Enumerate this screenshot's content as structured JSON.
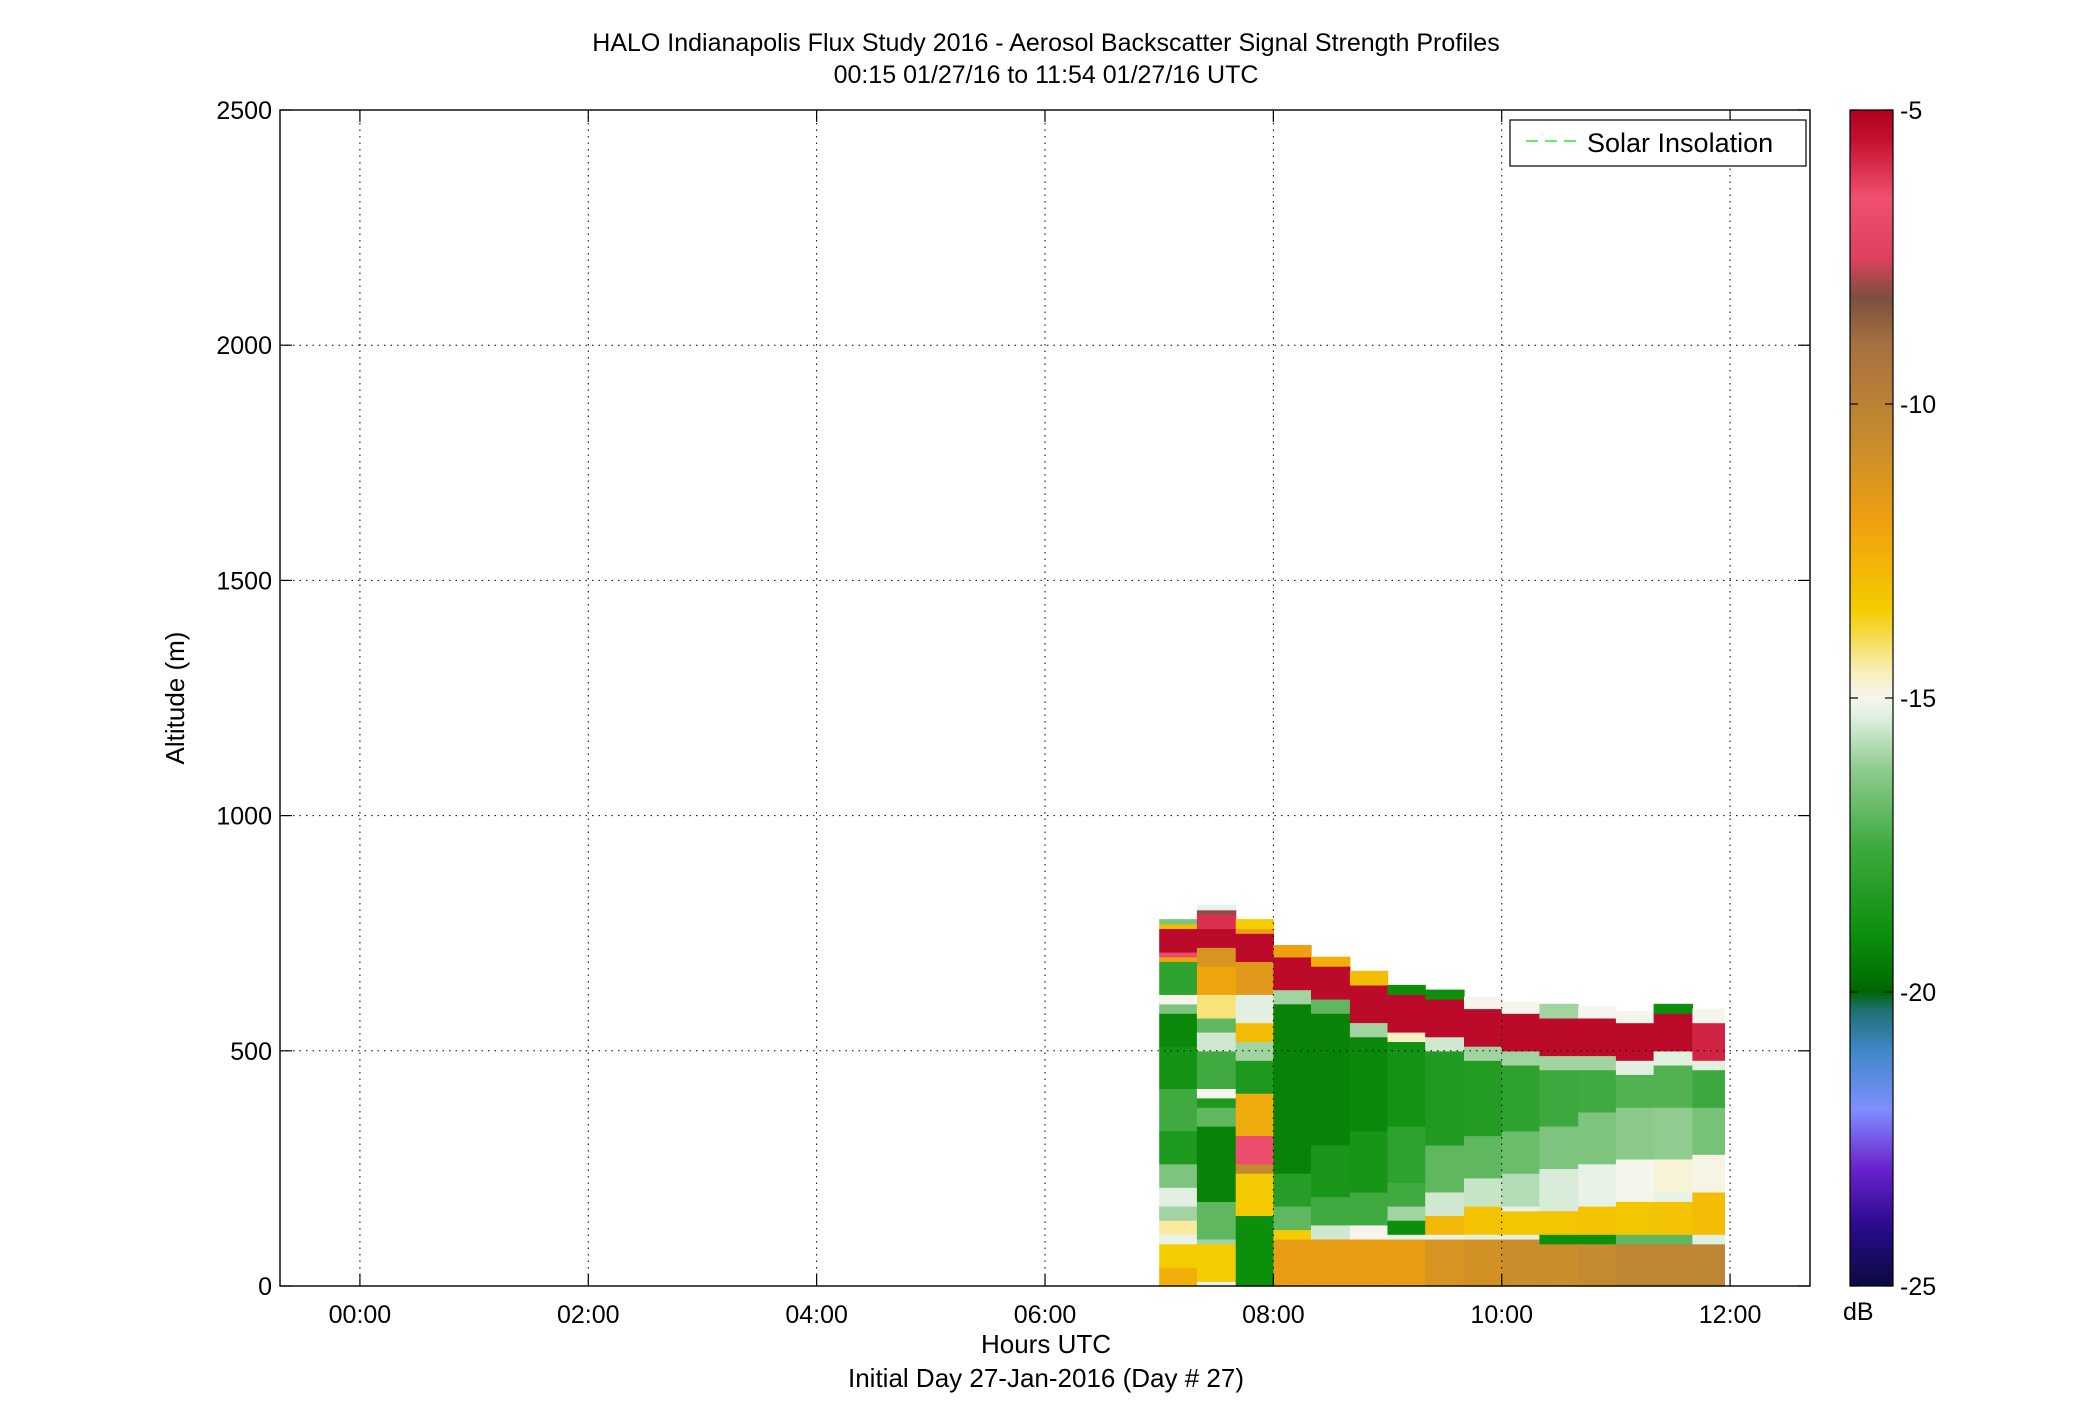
{
  "chart_data": {
    "type": "heatmap",
    "title": "HALO Indianapolis Flux Study 2016 - Aerosol Backscatter Signal Strength Profiles",
    "subtitle": "00:15 01/27/16 to 11:54 01/27/16  UTC",
    "xlabel": "Hours UTC",
    "xlabel2": "Initial Day 27-Jan-2016 (Day # 27)",
    "ylabel": "Altitude (m)",
    "xlim": [
      -0.7,
      12.7
    ],
    "ylim": [
      0,
      2500
    ],
    "x_ticks": [
      0,
      2,
      4,
      6,
      8,
      10,
      12
    ],
    "x_tick_labels": [
      "00:00",
      "02:00",
      "04:00",
      "06:00",
      "08:00",
      "10:00",
      "12:00"
    ],
    "y_ticks": [
      0,
      500,
      1000,
      1500,
      2000,
      2500
    ],
    "y_tick_labels": [
      "0",
      "500",
      "1000",
      "1500",
      "2000",
      "2500"
    ],
    "grid": true,
    "legend": {
      "entries": [
        "Solar Insolation"
      ],
      "placement": "top-right",
      "line_color": "#66ee66",
      "line_style": "dashed"
    },
    "colorbar": {
      "label": "dB",
      "range": [
        -25,
        -5
      ],
      "ticks": [
        -5,
        -10,
        -15,
        -20,
        -25
      ],
      "tick_labels": [
        "-5",
        "-10",
        "-15",
        "-20",
        "-25"
      ],
      "colormap": [
        {
          "v": -25,
          "c": "#0a0a40"
        },
        {
          "v": -24,
          "c": "#2a0a8a"
        },
        {
          "v": -23,
          "c": "#6a22cc"
        },
        {
          "v": -22,
          "c": "#7f8fff"
        },
        {
          "v": -21,
          "c": "#3f88c8"
        },
        {
          "v": -20.3,
          "c": "#1e7070"
        },
        {
          "v": -20,
          "c": "#006600"
        },
        {
          "v": -19,
          "c": "#0c900c"
        },
        {
          "v": -17.5,
          "c": "#40aa40"
        },
        {
          "v": -16.2,
          "c": "#90cc90"
        },
        {
          "v": -15.3,
          "c": "#e2f0e2"
        },
        {
          "v": -15,
          "c": "#f5f5ee"
        },
        {
          "v": -14.6,
          "c": "#f8f0c0"
        },
        {
          "v": -13.5,
          "c": "#f5cc00"
        },
        {
          "v": -12,
          "c": "#eea010"
        },
        {
          "v": -10.5,
          "c": "#c48a30"
        },
        {
          "v": -9,
          "c": "#a67040"
        },
        {
          "v": -8.2,
          "c": "#7a5040"
        },
        {
          "v": -7.5,
          "c": "#e04060"
        },
        {
          "v": -6.5,
          "c": "#f05070"
        },
        {
          "v": -5.5,
          "c": "#c41030"
        },
        {
          "v": -5,
          "c": "#b00020"
        }
      ]
    },
    "profiles": [
      {
        "t0": 7.0,
        "t1": 7.33,
        "top": 780,
        "layers": [
          [
            0,
            40,
            -12.5
          ],
          [
            40,
            90,
            -13.5
          ],
          [
            90,
            110,
            -15.2
          ],
          [
            110,
            140,
            -14.4
          ],
          [
            140,
            170,
            -16.0
          ],
          [
            170,
            210,
            -15.3
          ],
          [
            210,
            260,
            -16.5
          ],
          [
            260,
            330,
            -18.5
          ],
          [
            330,
            420,
            -17.5
          ],
          [
            420,
            510,
            -18.8
          ],
          [
            510,
            580,
            -19.2
          ],
          [
            580,
            600,
            -16.5
          ],
          [
            600,
            620,
            -15.0
          ],
          [
            620,
            690,
            -18.0
          ],
          [
            690,
            700,
            -12.0
          ],
          [
            700,
            710,
            -6.8
          ],
          [
            710,
            760,
            -5.3
          ],
          [
            760,
            770,
            -13.0
          ],
          [
            770,
            780,
            -16.5
          ]
        ]
      },
      {
        "t0": 7.33,
        "t1": 7.67,
        "top": 810,
        "layers": [
          [
            0,
            10,
            -15.2
          ],
          [
            10,
            90,
            -13.5
          ],
          [
            90,
            100,
            -16.0
          ],
          [
            100,
            180,
            -17.0
          ],
          [
            180,
            340,
            -19.3
          ],
          [
            340,
            380,
            -17.0
          ],
          [
            380,
            400,
            -18.5
          ],
          [
            400,
            420,
            -15.0
          ],
          [
            420,
            500,
            -17.5
          ],
          [
            500,
            540,
            -15.5
          ],
          [
            540,
            570,
            -17.0
          ],
          [
            570,
            620,
            -14.2
          ],
          [
            620,
            680,
            -12.2
          ],
          [
            680,
            720,
            -11.2
          ],
          [
            720,
            760,
            -5.3
          ],
          [
            760,
            790,
            -6.0
          ],
          [
            790,
            800,
            -8.0
          ],
          [
            800,
            810,
            -15.2
          ]
        ]
      },
      {
        "t0": 7.67,
        "t1": 8.0,
        "top": 780,
        "layers": [
          [
            0,
            150,
            -19.0
          ],
          [
            150,
            240,
            -13.4
          ],
          [
            240,
            260,
            -10.5
          ],
          [
            260,
            320,
            -6.7
          ],
          [
            320,
            410,
            -12.4
          ],
          [
            410,
            480,
            -18.5
          ],
          [
            480,
            520,
            -16.0
          ],
          [
            520,
            560,
            -13.0
          ],
          [
            560,
            620,
            -15.3
          ],
          [
            620,
            690,
            -11.5
          ],
          [
            690,
            750,
            -5.3
          ],
          [
            750,
            760,
            -12.0
          ],
          [
            760,
            780,
            -13.5
          ]
        ]
      },
      {
        "t0": 8.0,
        "t1": 8.33,
        "top": 725,
        "layers": [
          [
            0,
            100,
            -11.8
          ],
          [
            100,
            120,
            -13.5
          ],
          [
            120,
            170,
            -17.0
          ],
          [
            170,
            240,
            -18.2
          ],
          [
            240,
            600,
            -19.3
          ],
          [
            600,
            630,
            -16.0
          ],
          [
            630,
            700,
            -5.3
          ],
          [
            700,
            725,
            -12.0
          ]
        ]
      },
      {
        "t0": 8.33,
        "t1": 8.67,
        "top": 700,
        "layers": [
          [
            0,
            100,
            -11.8
          ],
          [
            100,
            130,
            -15.5
          ],
          [
            130,
            190,
            -17.5
          ],
          [
            190,
            300,
            -18.6
          ],
          [
            300,
            580,
            -19.3
          ],
          [
            580,
            610,
            -17.0
          ],
          [
            610,
            680,
            -5.3
          ],
          [
            680,
            700,
            -12.5
          ]
        ]
      },
      {
        "t0": 8.67,
        "t1": 9.0,
        "top": 670,
        "layers": [
          [
            0,
            100,
            -11.8
          ],
          [
            100,
            130,
            -15.0
          ],
          [
            130,
            200,
            -17.5
          ],
          [
            200,
            330,
            -18.7
          ],
          [
            330,
            530,
            -19.2
          ],
          [
            530,
            560,
            -16.0
          ],
          [
            560,
            640,
            -5.3
          ],
          [
            640,
            670,
            -13.0
          ]
        ]
      },
      {
        "t0": 9.0,
        "t1": 9.33,
        "top": 640,
        "layers": [
          [
            0,
            100,
            -11.8
          ],
          [
            100,
            110,
            -15.2
          ],
          [
            110,
            140,
            -19.0
          ],
          [
            140,
            170,
            -16.0
          ],
          [
            170,
            220,
            -17.5
          ],
          [
            220,
            340,
            -18.0
          ],
          [
            340,
            520,
            -18.8
          ],
          [
            520,
            540,
            -14.6
          ],
          [
            540,
            620,
            -5.3
          ],
          [
            620,
            640,
            -19.0
          ]
        ]
      },
      {
        "t0": 9.33,
        "t1": 9.67,
        "top": 630,
        "layers": [
          [
            0,
            100,
            -11.2
          ],
          [
            100,
            110,
            -15.2
          ],
          [
            110,
            150,
            -12.8
          ],
          [
            150,
            200,
            -15.5
          ],
          [
            200,
            300,
            -17.0
          ],
          [
            300,
            500,
            -18.4
          ],
          [
            500,
            530,
            -15.5
          ],
          [
            530,
            610,
            -5.3
          ],
          [
            610,
            630,
            -19.0
          ]
        ]
      },
      {
        "t0": 9.67,
        "t1": 10.0,
        "top": 615,
        "layers": [
          [
            0,
            100,
            -11.0
          ],
          [
            100,
            110,
            -15.3
          ],
          [
            110,
            170,
            -13.2
          ],
          [
            170,
            230,
            -15.6
          ],
          [
            230,
            320,
            -17.0
          ],
          [
            320,
            480,
            -18.3
          ],
          [
            480,
            510,
            -16.0
          ],
          [
            510,
            590,
            -5.3
          ],
          [
            590,
            615,
            -15.0
          ]
        ]
      },
      {
        "t0": 10.0,
        "t1": 10.33,
        "top": 605,
        "layers": [
          [
            0,
            100,
            -10.7
          ],
          [
            100,
            110,
            -15.3
          ],
          [
            110,
            160,
            -13.3
          ],
          [
            160,
            170,
            -15.2
          ],
          [
            170,
            240,
            -15.8
          ],
          [
            240,
            330,
            -16.8
          ],
          [
            330,
            470,
            -18.0
          ],
          [
            470,
            500,
            -16.0
          ],
          [
            500,
            580,
            -5.3
          ],
          [
            580,
            605,
            -15.0
          ]
        ]
      },
      {
        "t0": 10.33,
        "t1": 10.67,
        "top": 600,
        "layers": [
          [
            0,
            90,
            -10.7
          ],
          [
            90,
            110,
            -19.0
          ],
          [
            110,
            160,
            -13.3
          ],
          [
            160,
            250,
            -15.4
          ],
          [
            250,
            340,
            -16.5
          ],
          [
            340,
            460,
            -17.6
          ],
          [
            460,
            490,
            -16.0
          ],
          [
            490,
            570,
            -5.3
          ],
          [
            570,
            600,
            -16.0
          ]
        ]
      },
      {
        "t0": 10.67,
        "t1": 11.0,
        "top": 595,
        "layers": [
          [
            0,
            90,
            -10.5
          ],
          [
            90,
            110,
            -19.0
          ],
          [
            110,
            170,
            -13.2
          ],
          [
            170,
            260,
            -15.2
          ],
          [
            260,
            370,
            -16.5
          ],
          [
            370,
            460,
            -17.5
          ],
          [
            460,
            490,
            -16.0
          ],
          [
            490,
            570,
            -5.3
          ],
          [
            570,
            595,
            -15.0
          ]
        ]
      },
      {
        "t0": 11.0,
        "t1": 11.33,
        "top": 585,
        "layers": [
          [
            0,
            90,
            -10.2
          ],
          [
            90,
            110,
            -17.0
          ],
          [
            110,
            180,
            -13.3
          ],
          [
            180,
            270,
            -15.0
          ],
          [
            270,
            380,
            -16.3
          ],
          [
            380,
            450,
            -17.2
          ],
          [
            450,
            480,
            -15.3
          ],
          [
            480,
            560,
            -5.3
          ],
          [
            560,
            585,
            -15.0
          ]
        ]
      },
      {
        "t0": 11.33,
        "t1": 11.67,
        "top": 600,
        "layers": [
          [
            0,
            90,
            -10.2
          ],
          [
            90,
            110,
            -17.0
          ],
          [
            110,
            180,
            -13.2
          ],
          [
            180,
            200,
            -15.2
          ],
          [
            200,
            270,
            -14.8
          ],
          [
            270,
            380,
            -16.2
          ],
          [
            380,
            470,
            -17.2
          ],
          [
            470,
            500,
            -15.3
          ],
          [
            500,
            580,
            -5.3
          ],
          [
            580,
            600,
            -19.0
          ]
        ]
      },
      {
        "t0": 11.67,
        "t1": 11.95,
        "top": 590,
        "layers": [
          [
            0,
            90,
            -10.2
          ],
          [
            90,
            110,
            -15.3
          ],
          [
            110,
            200,
            -13.0
          ],
          [
            200,
            280,
            -14.9
          ],
          [
            280,
            380,
            -16.6
          ],
          [
            380,
            460,
            -17.6
          ],
          [
            460,
            480,
            -15.3
          ],
          [
            480,
            560,
            -5.8
          ],
          [
            560,
            590,
            -15.0
          ]
        ]
      }
    ]
  }
}
